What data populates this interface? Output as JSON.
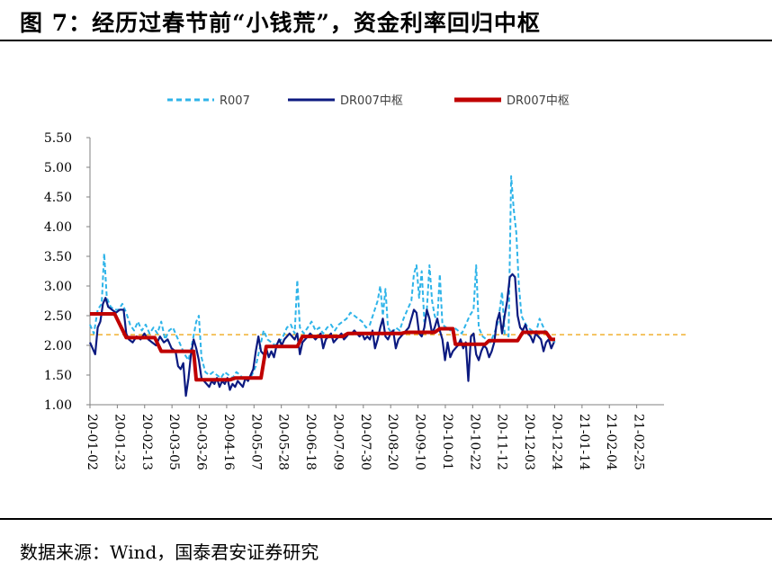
{
  "title": "图 7：经历过春节前“小钱荒”，资金利率回归中枢",
  "source": "数据来源：Wind，国泰君安证券研究",
  "colors": {
    "r007": "#2fb4e9",
    "dr007": "#0c1a80",
    "center": "#c00000",
    "ref": "#f0b030",
    "axis": "#808080"
  },
  "chart_data": {
    "type": "line",
    "y_axis": {
      "min": 1.0,
      "max": 5.5,
      "step": 0.5,
      "ticks": [
        "1.00",
        "1.50",
        "2.00",
        "2.50",
        "3.00",
        "3.50",
        "4.00",
        "4.50",
        "5.00",
        "5.50"
      ]
    },
    "x_tick_labels": [
      "20-01-02",
      "20-01-23",
      "20-02-13",
      "20-03-05",
      "20-03-26",
      "20-04-16",
      "20-05-07",
      "20-05-28",
      "20-06-18",
      "20-07-09",
      "20-07-30",
      "20-08-20",
      "20-09-10",
      "20-10-01",
      "20-10-22",
      "20-11-12",
      "20-12-03",
      "20-12-24",
      "21-01-14",
      "21-02-04",
      "21-02-25"
    ],
    "x_range_days": [
      0,
      443
    ],
    "legend": [
      {
        "key": "r007",
        "label": "R007",
        "style": "dashed"
      },
      {
        "key": "dr007",
        "label": "DR007中枢",
        "style": "solid"
      },
      {
        "key": "center",
        "label": "DR007中枢",
        "style": "thick"
      }
    ],
    "reference_line": 2.18,
    "series": {
      "r007": [
        [
          0,
          2.35
        ],
        [
          3,
          2.2
        ],
        [
          6,
          2.6
        ],
        [
          9,
          2.7
        ],
        [
          11,
          3.55
        ],
        [
          13,
          2.8
        ],
        [
          16,
          2.65
        ],
        [
          19,
          2.6
        ],
        [
          22,
          2.6
        ],
        [
          25,
          2.7
        ],
        [
          28,
          2.55
        ],
        [
          31,
          2.35
        ],
        [
          34,
          2.25
        ],
        [
          37,
          2.4
        ],
        [
          40,
          2.25
        ],
        [
          43,
          2.35
        ],
        [
          46,
          2.2
        ],
        [
          49,
          2.3
        ],
        [
          52,
          2.2
        ],
        [
          55,
          2.4
        ],
        [
          58,
          2.1
        ],
        [
          61,
          2.25
        ],
        [
          64,
          2.3
        ],
        [
          67,
          2.15
        ],
        [
          70,
          2.0
        ],
        [
          73,
          1.85
        ],
        [
          76,
          1.75
        ],
        [
          79,
          2.05
        ],
        [
          82,
          2.4
        ],
        [
          84,
          2.5
        ],
        [
          86,
          1.8
        ],
        [
          89,
          1.55
        ],
        [
          92,
          1.5
        ],
        [
          95,
          1.55
        ],
        [
          98,
          1.5
        ],
        [
          101,
          1.45
        ],
        [
          104,
          1.55
        ],
        [
          107,
          1.5
        ],
        [
          110,
          1.45
        ],
        [
          113,
          1.55
        ],
        [
          116,
          1.5
        ],
        [
          119,
          1.4
        ],
        [
          122,
          1.45
        ],
        [
          125,
          1.5
        ],
        [
          128,
          1.65
        ],
        [
          131,
          1.95
        ],
        [
          134,
          2.25
        ],
        [
          137,
          2.1
        ],
        [
          140,
          2.05
        ],
        [
          143,
          2.0
        ],
        [
          146,
          2.05
        ],
        [
          149,
          2.15
        ],
        [
          152,
          2.3
        ],
        [
          155,
          2.35
        ],
        [
          158,
          2.2
        ],
        [
          160,
          3.1
        ],
        [
          162,
          2.3
        ],
        [
          165,
          2.2
        ],
        [
          168,
          2.3
        ],
        [
          171,
          2.4
        ],
        [
          174,
          2.25
        ],
        [
          177,
          2.3
        ],
        [
          180,
          2.2
        ],
        [
          183,
          2.3
        ],
        [
          186,
          2.35
        ],
        [
          189,
          2.25
        ],
        [
          192,
          2.35
        ],
        [
          195,
          2.4
        ],
        [
          198,
          2.45
        ],
        [
          201,
          2.55
        ],
        [
          204,
          2.5
        ],
        [
          207,
          2.45
        ],
        [
          210,
          2.4
        ],
        [
          213,
          2.3
        ],
        [
          216,
          2.35
        ],
        [
          219,
          2.55
        ],
        [
          222,
          2.75
        ],
        [
          224,
          3.0
        ],
        [
          226,
          2.5
        ],
        [
          228,
          2.95
        ],
        [
          230,
          2.3
        ],
        [
          233,
          2.2
        ],
        [
          236,
          2.3
        ],
        [
          239,
          2.25
        ],
        [
          242,
          2.45
        ],
        [
          245,
          2.6
        ],
        [
          248,
          2.75
        ],
        [
          250,
          3.2
        ],
        [
          252,
          3.35
        ],
        [
          254,
          2.8
        ],
        [
          256,
          3.25
        ],
        [
          258,
          2.4
        ],
        [
          260,
          2.6
        ],
        [
          262,
          3.35
        ],
        [
          264,
          2.75
        ],
        [
          266,
          2.5
        ],
        [
          268,
          2.4
        ],
        [
          270,
          3.2
        ],
        [
          272,
          2.35
        ],
        [
          275,
          2.3
        ],
        [
          278,
          2.25
        ],
        [
          281,
          2.3
        ],
        [
          284,
          2.25
        ],
        [
          287,
          2.2
        ],
        [
          290,
          2.35
        ],
        [
          293,
          2.5
        ],
        [
          296,
          2.6
        ],
        [
          298,
          3.35
        ],
        [
          300,
          2.3
        ],
        [
          303,
          2.15
        ],
        [
          306,
          2.1
        ],
        [
          309,
          2.05
        ],
        [
          312,
          2.2
        ],
        [
          315,
          2.4
        ],
        [
          318,
          2.9
        ],
        [
          320,
          2.2
        ],
        [
          323,
          2.15
        ],
        [
          325,
          4.85
        ],
        [
          327,
          4.3
        ],
        [
          329,
          3.9
        ],
        [
          331,
          3.0
        ],
        [
          333,
          2.5
        ],
        [
          335,
          2.4
        ],
        [
          338,
          2.3
        ],
        [
          341,
          2.25
        ],
        [
          344,
          2.2
        ],
        [
          347,
          2.45
        ],
        [
          350,
          2.3
        ],
        [
          353,
          2.15
        ],
        [
          356,
          2.1
        ],
        [
          359,
          2.05
        ]
      ],
      "dr007": [
        [
          0,
          2.05
        ],
        [
          2,
          1.95
        ],
        [
          4,
          1.85
        ],
        [
          6,
          2.3
        ],
        [
          8,
          2.4
        ],
        [
          10,
          2.7
        ],
        [
          12,
          2.8
        ],
        [
          14,
          2.65
        ],
        [
          17,
          2.6
        ],
        [
          20,
          2.55
        ],
        [
          23,
          2.6
        ],
        [
          26,
          2.6
        ],
        [
          28,
          2.2
        ],
        [
          30,
          2.1
        ],
        [
          33,
          2.05
        ],
        [
          36,
          2.15
        ],
        [
          39,
          2.1
        ],
        [
          42,
          2.2
        ],
        [
          45,
          2.1
        ],
        [
          48,
          2.05
        ],
        [
          51,
          2.0
        ],
        [
          54,
          2.15
        ],
        [
          57,
          2.05
        ],
        [
          60,
          2.1
        ],
        [
          63,
          1.95
        ],
        [
          66,
          1.9
        ],
        [
          68,
          1.65
        ],
        [
          70,
          1.6
        ],
        [
          72,
          1.7
        ],
        [
          74,
          1.15
        ],
        [
          76,
          1.45
        ],
        [
          78,
          1.85
        ],
        [
          80,
          2.1
        ],
        [
          82,
          1.95
        ],
        [
          84,
          1.75
        ],
        [
          86,
          1.45
        ],
        [
          88,
          1.4
        ],
        [
          90,
          1.35
        ],
        [
          92,
          1.3
        ],
        [
          94,
          1.4
        ],
        [
          96,
          1.35
        ],
        [
          98,
          1.45
        ],
        [
          100,
          1.3
        ],
        [
          102,
          1.4
        ],
        [
          104,
          1.35
        ],
        [
          106,
          1.45
        ],
        [
          108,
          1.25
        ],
        [
          110,
          1.35
        ],
        [
          112,
          1.3
        ],
        [
          114,
          1.4
        ],
        [
          116,
          1.35
        ],
        [
          118,
          1.3
        ],
        [
          120,
          1.45
        ],
        [
          122,
          1.4
        ],
        [
          124,
          1.5
        ],
        [
          126,
          1.6
        ],
        [
          128,
          1.9
        ],
        [
          130,
          2.15
        ],
        [
          132,
          1.9
        ],
        [
          134,
          1.85
        ],
        [
          136,
          1.95
        ],
        [
          138,
          1.8
        ],
        [
          140,
          1.9
        ],
        [
          142,
          1.8
        ],
        [
          144,
          2.0
        ],
        [
          146,
          2.1
        ],
        [
          148,
          2.0
        ],
        [
          150,
          2.1
        ],
        [
          152,
          2.15
        ],
        [
          154,
          2.2
        ],
        [
          156,
          2.15
        ],
        [
          158,
          2.1
        ],
        [
          160,
          2.2
        ],
        [
          162,
          1.85
        ],
        [
          164,
          2.05
        ],
        [
          166,
          2.1
        ],
        [
          168,
          2.15
        ],
        [
          170,
          2.2
        ],
        [
          172,
          2.15
        ],
        [
          174,
          2.1
        ],
        [
          176,
          2.15
        ],
        [
          178,
          2.2
        ],
        [
          180,
          1.95
        ],
        [
          182,
          2.1
        ],
        [
          184,
          2.15
        ],
        [
          186,
          2.2
        ],
        [
          188,
          2.05
        ],
        [
          190,
          2.1
        ],
        [
          192,
          2.15
        ],
        [
          194,
          2.2
        ],
        [
          196,
          2.1
        ],
        [
          198,
          2.15
        ],
        [
          200,
          2.2
        ],
        [
          202,
          2.2
        ],
        [
          204,
          2.25
        ],
        [
          206,
          2.2
        ],
        [
          208,
          2.15
        ],
        [
          210,
          2.2
        ],
        [
          212,
          2.1
        ],
        [
          214,
          2.15
        ],
        [
          216,
          2.1
        ],
        [
          218,
          2.25
        ],
        [
          220,
          1.95
        ],
        [
          222,
          2.1
        ],
        [
          224,
          2.3
        ],
        [
          226,
          2.45
        ],
        [
          228,
          2.15
        ],
        [
          230,
          2.1
        ],
        [
          232,
          2.2
        ],
        [
          234,
          2.25
        ],
        [
          236,
          1.95
        ],
        [
          238,
          2.1
        ],
        [
          240,
          2.15
        ],
        [
          242,
          2.2
        ],
        [
          244,
          2.25
        ],
        [
          246,
          2.3
        ],
        [
          248,
          2.45
        ],
        [
          250,
          2.6
        ],
        [
          252,
          2.55
        ],
        [
          254,
          2.2
        ],
        [
          256,
          2.15
        ],
        [
          258,
          2.3
        ],
        [
          260,
          2.6
        ],
        [
          262,
          2.45
        ],
        [
          264,
          2.2
        ],
        [
          266,
          2.3
        ],
        [
          268,
          2.45
        ],
        [
          270,
          2.25
        ],
        [
          272,
          2.1
        ],
        [
          274,
          1.75
        ],
        [
          276,
          2.05
        ],
        [
          278,
          1.8
        ],
        [
          280,
          1.9
        ],
        [
          282,
          1.95
        ],
        [
          284,
          2.0
        ],
        [
          286,
          2.1
        ],
        [
          288,
          1.95
        ],
        [
          290,
          2.05
        ],
        [
          292,
          1.4
        ],
        [
          294,
          2.15
        ],
        [
          296,
          2.2
        ],
        [
          298,
          1.85
        ],
        [
          300,
          1.75
        ],
        [
          302,
          1.9
        ],
        [
          304,
          2.0
        ],
        [
          306,
          1.95
        ],
        [
          308,
          1.8
        ],
        [
          310,
          1.9
        ],
        [
          312,
          2.05
        ],
        [
          314,
          2.4
        ],
        [
          316,
          2.55
        ],
        [
          318,
          2.2
        ],
        [
          320,
          2.5
        ],
        [
          322,
          2.75
        ],
        [
          324,
          3.15
        ],
        [
          326,
          3.2
        ],
        [
          328,
          3.15
        ],
        [
          330,
          2.5
        ],
        [
          332,
          2.3
        ],
        [
          334,
          2.25
        ],
        [
          336,
          2.35
        ],
        [
          338,
          2.2
        ],
        [
          340,
          2.15
        ],
        [
          342,
          2.05
        ],
        [
          344,
          2.2
        ],
        [
          346,
          2.15
        ],
        [
          348,
          2.1
        ],
        [
          350,
          1.9
        ],
        [
          352,
          2.05
        ],
        [
          354,
          2.1
        ],
        [
          356,
          1.95
        ],
        [
          358,
          2.05
        ]
      ],
      "center": [
        [
          0,
          2.53
        ],
        [
          15,
          2.53
        ],
        [
          19,
          2.53
        ],
        [
          28,
          2.13
        ],
        [
          43,
          2.13
        ],
        [
          50,
          2.13
        ],
        [
          55,
          1.9
        ],
        [
          70,
          1.9
        ],
        [
          80,
          1.9
        ],
        [
          82,
          1.42
        ],
        [
          108,
          1.42
        ],
        [
          112,
          1.45
        ],
        [
          132,
          1.45
        ],
        [
          136,
          1.98
        ],
        [
          160,
          1.98
        ],
        [
          164,
          2.15
        ],
        [
          195,
          2.15
        ],
        [
          199,
          2.2
        ],
        [
          240,
          2.2
        ],
        [
          244,
          2.22
        ],
        [
          266,
          2.22
        ],
        [
          270,
          2.28
        ],
        [
          280,
          2.28
        ],
        [
          282,
          2.02
        ],
        [
          305,
          2.02
        ],
        [
          308,
          2.08
        ],
        [
          330,
          2.08
        ],
        [
          334,
          2.22
        ],
        [
          352,
          2.22
        ],
        [
          356,
          2.1
        ],
        [
          359,
          2.1
        ]
      ]
    }
  }
}
